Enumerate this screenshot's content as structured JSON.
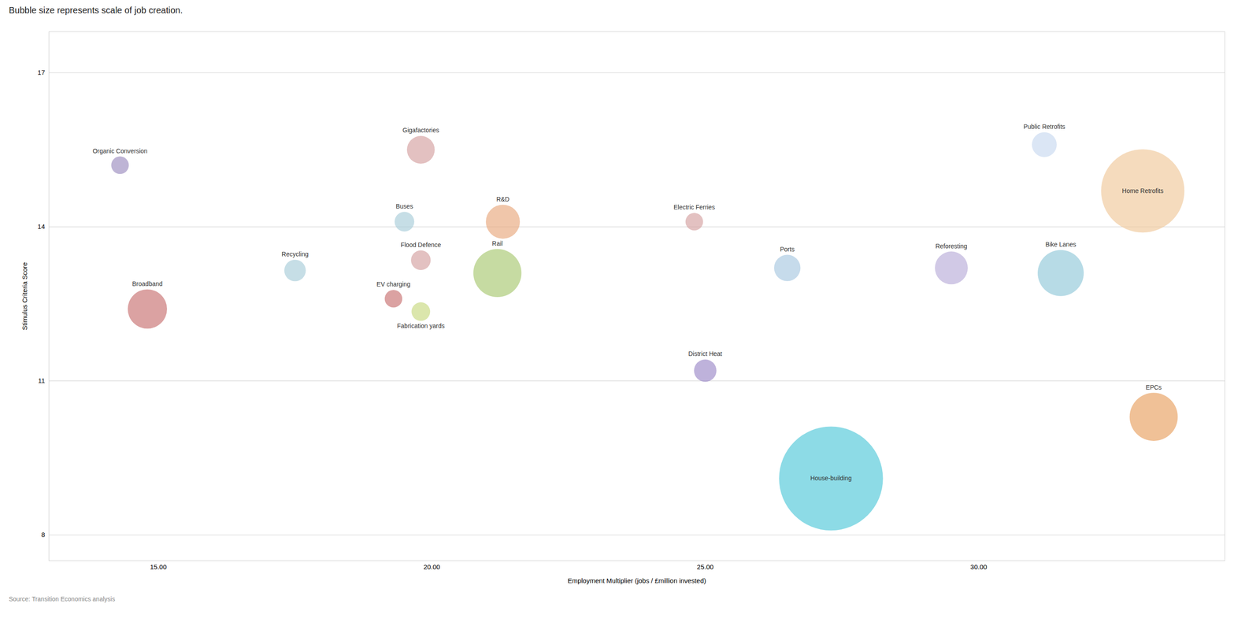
{
  "chart_data": {
    "type": "bubble",
    "title": "Bubble size represents scale of job creation.",
    "xlabel": "Employment Multiplier (jobs / £million invested)",
    "ylabel": "Stimulus Criteria Score",
    "source": "Source: Transition Economics analysis",
    "xlim": [
      13.0,
      34.5
    ],
    "ylim": [
      7.5,
      17.8
    ],
    "xticks": [
      {
        "value": 15.0,
        "label": "15.00"
      },
      {
        "value": 20.0,
        "label": "20.00"
      },
      {
        "value": 25.0,
        "label": "25.00"
      },
      {
        "value": 30.0,
        "label": "30.00"
      }
    ],
    "yticks": [
      8,
      11,
      14,
      17
    ],
    "grid": true,
    "labels": [
      "Organic Conversion",
      "Gigafactories",
      "Buses",
      "R&D",
      "Flood Defence",
      "Rail",
      "Recycling",
      "EV charging",
      "Broadband",
      "Fabrication yards",
      "Electric Ferries",
      "Ports",
      "District Heat",
      "House-building",
      "Reforesting",
      "Bike Lanes",
      "Public Retrofits",
      "Home Retrofits",
      "EPCs"
    ],
    "x": [
      14.3,
      19.8,
      19.5,
      21.3,
      19.8,
      21.2,
      17.5,
      19.3,
      14.8,
      19.8,
      24.8,
      26.5,
      25.0,
      27.3,
      29.5,
      31.5,
      31.2,
      33.0,
      33.2
    ],
    "y": [
      15.2,
      15.5,
      14.1,
      14.1,
      13.35,
      13.1,
      13.15,
      12.6,
      12.4,
      12.35,
      14.1,
      13.2,
      11.2,
      9.1,
      13.2,
      13.1,
      15.6,
      14.7,
      10.3
    ],
    "sizes": [
      80,
      200,
      100,
      300,
      100,
      600,
      120,
      80,
      400,
      90,
      80,
      180,
      130,
      2800,
      280,
      550,
      160,
      1800,
      600
    ],
    "colors": [
      "#9b8cbf",
      "#d4a0a0",
      "#a8ccd8",
      "#e8a87c",
      "#d4a0a0",
      "#a8c870",
      "#a8ccd8",
      "#c87070",
      "#c87070",
      "#c8d880",
      "#d4a0a0",
      "#a8c8e0",
      "#9b88c8",
      "#50c8d8",
      "#b8acd8",
      "#90c8d8",
      "#c8d8f0",
      "#f0c89a",
      "#e8a060"
    ]
  }
}
